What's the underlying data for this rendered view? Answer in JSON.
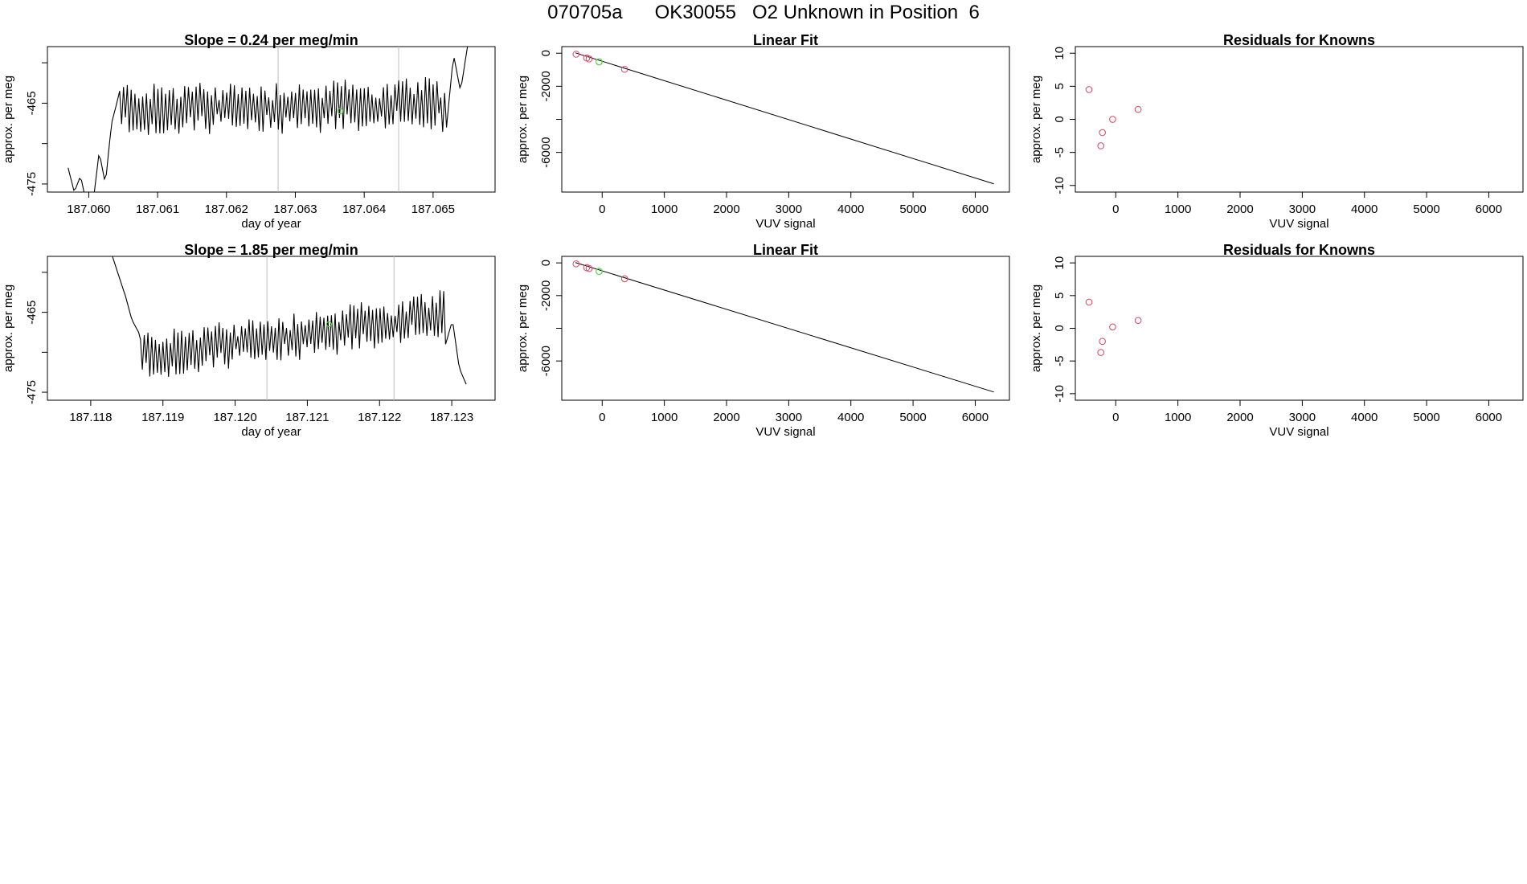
{
  "page_title": "070705a      OK30055   O2 Unknown in Position  6",
  "colors": {
    "trace": "#000000",
    "grid_marker": "#bebebe",
    "known_points": "#df536b",
    "unknown_point": "#61d04f"
  },
  "chart_data": [
    {
      "id": "time-1",
      "type": "line",
      "title": "Slope =  0.24  per meg/min",
      "xlabel": "day of year",
      "ylabel": "approx. per meg",
      "xlim": [
        187.0594,
        187.0659
      ],
      "ylim": [
        -476,
        -458
      ],
      "xticks": [
        187.06,
        187.061,
        187.062,
        187.063,
        187.064,
        187.065
      ],
      "xtick_labels": [
        "187.060",
        "187.061",
        "187.062",
        "187.063",
        "187.064",
        "187.065"
      ],
      "yticks": [
        -475,
        -470,
        -465,
        -460
      ],
      "ytick_labels": [
        "-475",
        "",
        "-465",
        ""
      ],
      "vlines": [
        187.06275,
        187.0645
      ],
      "marker": {
        "x": 187.06365,
        "y": -466
      },
      "trace": {
        "x_start": 187.0597,
        "x_end": 187.0655,
        "n": 210,
        "start": [
          -473.0,
          -476.0,
          -474.0,
          -477.5,
          -477.5,
          -471.0,
          -475.0,
          -467.5,
          -464.5
        ],
        "mean": -465.5,
        "amplitude": 3.2,
        "trend": 0.5,
        "end": [
          -468.0,
          -459.0,
          -463.5,
          -458.0
        ]
      }
    },
    {
      "id": "time-2",
      "type": "line",
      "title": "Slope =  1.85  per meg/min",
      "xlabel": "day of year",
      "ylabel": "approx. per meg",
      "xlim": [
        187.1174,
        187.1236
      ],
      "ylim": [
        -476,
        -458
      ],
      "xticks": [
        187.118,
        187.119,
        187.12,
        187.121,
        187.122,
        187.123
      ],
      "xtick_labels": [
        "187.118",
        "187.119",
        "187.120",
        "187.121",
        "187.122",
        "187.123"
      ],
      "yticks": [
        -475,
        -470,
        -465,
        -460
      ],
      "ytick_labels": [
        "-475",
        "",
        "-465",
        ""
      ],
      "vlines": [
        187.12044,
        187.1222
      ],
      "marker": {
        "x": 187.1213,
        "y": -466.5
      },
      "trace": {
        "x_start": 187.1183,
        "x_end": 187.1232,
        "n": 190,
        "start": [
          -458.0,
          -460.5,
          -463.0,
          -466.0,
          -467.5
        ],
        "mean": -468.0,
        "amplitude": 3.0,
        "trend": 5.0,
        "end": [
          -469.0,
          -466.0,
          -472.0,
          -474.0
        ]
      }
    },
    {
      "id": "fit-1",
      "type": "scatter",
      "title": "Linear Fit",
      "xlabel": "VUV signal",
      "ylabel": "approx. per meg",
      "xlim": [
        -650,
        6550
      ],
      "ylim": [
        -8400,
        400
      ],
      "xticks": [
        0,
        1000,
        2000,
        3000,
        4000,
        5000,
        6000
      ],
      "xtick_labels": [
        "0",
        "1000",
        "2000",
        "3000",
        "4000",
        "5000",
        "6000"
      ],
      "yticks": [
        0,
        -2000,
        -4000,
        -6000
      ],
      "ytick_labels": [
        "0",
        "-2000",
        "",
        "-6000"
      ],
      "line": {
        "x": [
          -430,
          6300
        ],
        "y": [
          20,
          -7900
        ]
      },
      "points": [
        {
          "x": -420,
          "y": -60
        },
        {
          "x": -250,
          "y": -290
        },
        {
          "x": -210,
          "y": -345
        },
        {
          "x": 360,
          "y": -970
        }
      ],
      "unknown": {
        "x": -50,
        "y": -520
      }
    },
    {
      "id": "fit-2",
      "type": "scatter",
      "title": "Linear Fit",
      "xlabel": "VUV signal",
      "ylabel": "approx. per meg",
      "xlim": [
        -650,
        6550
      ],
      "ylim": [
        -8400,
        400
      ],
      "xticks": [
        0,
        1000,
        2000,
        3000,
        4000,
        5000,
        6000
      ],
      "xtick_labels": [
        "0",
        "1000",
        "2000",
        "3000",
        "4000",
        "5000",
        "6000"
      ],
      "yticks": [
        0,
        -2000,
        -4000,
        -6000
      ],
      "ytick_labels": [
        "0",
        "-2000",
        "",
        "-6000"
      ],
      "line": {
        "x": [
          -430,
          6300
        ],
        "y": [
          20,
          -7900
        ]
      },
      "points": [
        {
          "x": -420,
          "y": -60
        },
        {
          "x": -250,
          "y": -290
        },
        {
          "x": -210,
          "y": -345
        },
        {
          "x": 360,
          "y": -970
        }
      ],
      "unknown": {
        "x": -50,
        "y": -520
      }
    },
    {
      "id": "resid-1",
      "type": "scatter",
      "title": "Residuals for Knowns",
      "xlabel": "VUV signal",
      "ylabel": "approx. per meg",
      "xlim": [
        -650,
        6550
      ],
      "ylim": [
        -11,
        11
      ],
      "xticks": [
        0,
        1000,
        2000,
        3000,
        4000,
        5000,
        6000
      ],
      "xtick_labels": [
        "0",
        "1000",
        "2000",
        "3000",
        "4000",
        "5000",
        "6000"
      ],
      "yticks": [
        10,
        5,
        0,
        -5,
        -10
      ],
      "ytick_labels": [
        "10",
        "5",
        "0",
        "-5",
        "-10"
      ],
      "points": [
        {
          "x": -430,
          "y": 4.5
        },
        {
          "x": -215,
          "y": -2.0
        },
        {
          "x": -240,
          "y": -4.0
        },
        {
          "x": -50,
          "y": 0.0
        },
        {
          "x": 360,
          "y": 1.5
        }
      ]
    },
    {
      "id": "resid-2",
      "type": "scatter",
      "title": "Residuals for Knowns",
      "xlabel": "VUV signal",
      "ylabel": "approx. per meg",
      "xlim": [
        -650,
        6550
      ],
      "ylim": [
        -11,
        11
      ],
      "xticks": [
        0,
        1000,
        2000,
        3000,
        4000,
        5000,
        6000
      ],
      "xtick_labels": [
        "0",
        "1000",
        "2000",
        "3000",
        "4000",
        "5000",
        "6000"
      ],
      "yticks": [
        10,
        5,
        0,
        -5,
        -10
      ],
      "ytick_labels": [
        "10",
        "5",
        "0",
        "-5",
        "-10"
      ],
      "points": [
        {
          "x": -430,
          "y": 4.0
        },
        {
          "x": -215,
          "y": -2.0
        },
        {
          "x": -240,
          "y": -3.7
        },
        {
          "x": -50,
          "y": 0.2
        },
        {
          "x": 360,
          "y": 1.2
        }
      ]
    }
  ]
}
